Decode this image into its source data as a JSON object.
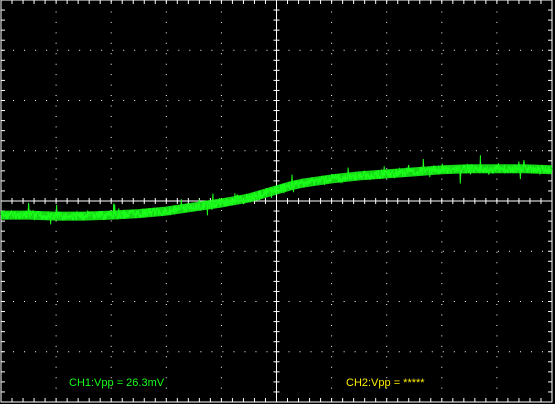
{
  "readouts": {
    "ch1": "CH1:Vpp = 26.3mV",
    "ch2": "CH2:Vpp = *****"
  },
  "colors": {
    "background": "#000000",
    "grid": "#ffffff",
    "ch1": "#1aff1a",
    "ch2": "#ffee00"
  },
  "chart_data": {
    "type": "line",
    "grid": true,
    "x_divisions": 10,
    "y_divisions": 8,
    "xlim": [
      0,
      10
    ],
    "ylim": [
      -4,
      4
    ],
    "series": [
      {
        "x": [
          0,
          0.5,
          1,
          1.5,
          2,
          2.5,
          3,
          3.5,
          4,
          4.5,
          4.75,
          5,
          5.25,
          5.5,
          6,
          6.5,
          7,
          7.5,
          8,
          8.5,
          9,
          9.5,
          10
        ],
        "y": [
          -0.28,
          -0.28,
          -0.3,
          -0.3,
          -0.28,
          -0.25,
          -0.2,
          -0.12,
          -0.04,
          0.06,
          0.14,
          0.22,
          0.3,
          0.36,
          0.44,
          0.5,
          0.54,
          0.58,
          0.62,
          0.64,
          0.64,
          0.64,
          0.62
        ]
      }
    ]
  }
}
